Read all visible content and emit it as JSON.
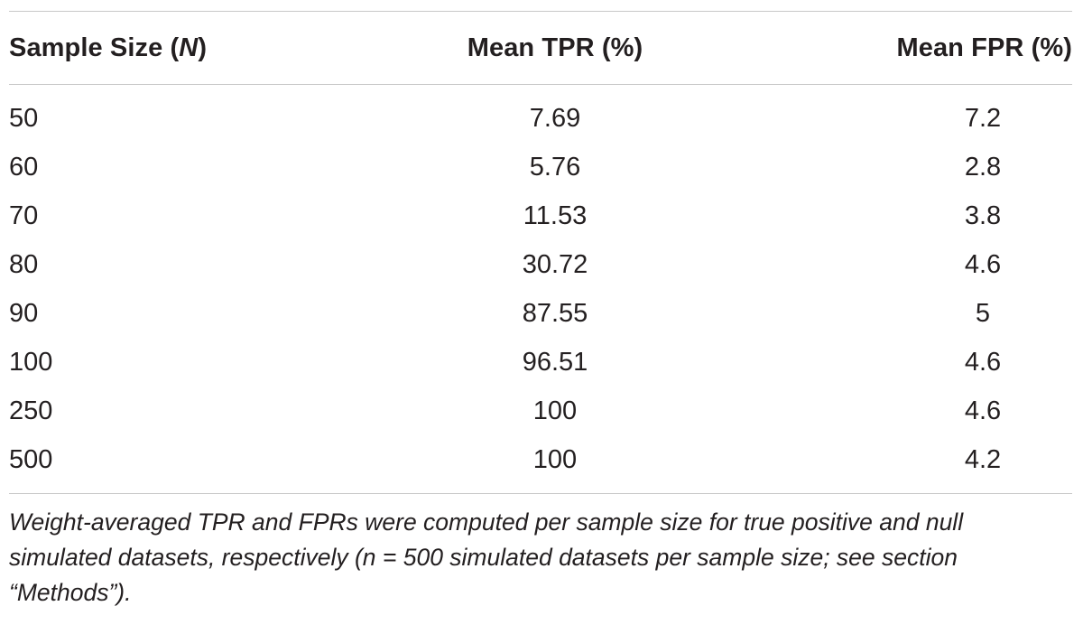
{
  "table": {
    "headers": {
      "sample_size_prefix": "Sample Size (",
      "sample_size_var": "N",
      "sample_size_suffix": ")",
      "mean_tpr": "Mean TPR (%)",
      "mean_fpr": "Mean FPR (%)"
    },
    "rows": [
      {
        "n": "50",
        "tpr": "7.69",
        "fpr": "7.2"
      },
      {
        "n": "60",
        "tpr": "5.76",
        "fpr": "2.8"
      },
      {
        "n": "70",
        "tpr": "11.53",
        "fpr": "3.8"
      },
      {
        "n": "80",
        "tpr": "30.72",
        "fpr": "4.6"
      },
      {
        "n": "90",
        "tpr": "87.55",
        "fpr": "5"
      },
      {
        "n": "100",
        "tpr": "96.51",
        "fpr": "4.6"
      },
      {
        "n": "250",
        "tpr": "100",
        "fpr": "4.6"
      },
      {
        "n": "500",
        "tpr": "100",
        "fpr": "4.2"
      }
    ],
    "footnote": "Weight-averaged TPR and FPRs were computed per sample size for true positive and null simulated datasets, respectively (n = 500 simulated datasets per sample size; see section “Methods”)."
  }
}
